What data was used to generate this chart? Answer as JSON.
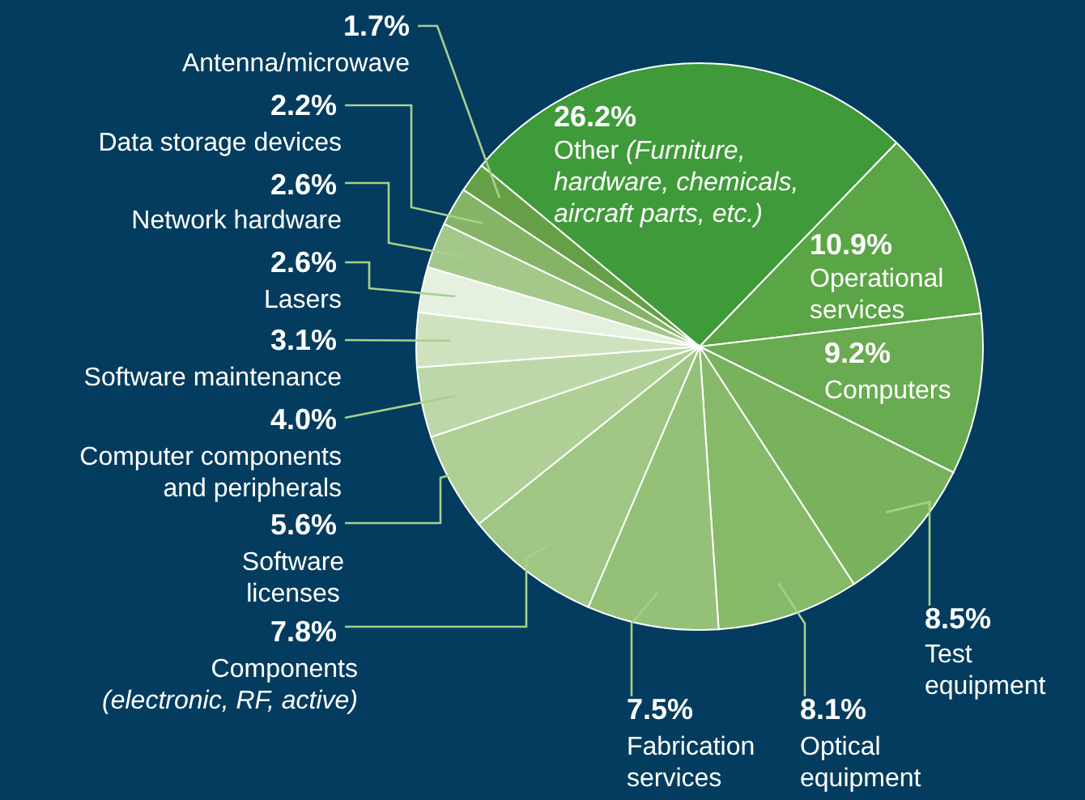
{
  "chart_data": {
    "type": "pie",
    "categories": [
      "Other (Furniture, hardware, chemicals, aircraft parts, etc.)",
      "Operational services",
      "Computers",
      "Test equipment",
      "Optical equipment",
      "Fabrication services",
      "Components (electronic, RF, active)",
      "Software licenses",
      "Computer components and peripherals",
      "Software maintenance",
      "Lasers",
      "Network hardware",
      "Data storage devices",
      "Antenna/microwave"
    ],
    "values": [
      26.2,
      10.9,
      9.2,
      8.5,
      8.1,
      7.5,
      7.8,
      5.6,
      4.0,
      3.1,
      2.6,
      2.6,
      2.2,
      1.7
    ],
    "value_labels": [
      "26.2%",
      "10.9%",
      "9.2%",
      "8.5%",
      "8.1%",
      "7.5%",
      "7.8%",
      "5.6%",
      "4.0%",
      "3.1%",
      "2.6%",
      "2.6%",
      "2.2%",
      "1.7%"
    ],
    "colors": [
      "#3f9a3a",
      "#5aa545",
      "#69ab50",
      "#78b25c",
      "#86b968",
      "#94c177",
      "#9fc683",
      "#afcf97",
      "#bdd8a8",
      "#cfe2c0",
      "#e6f0df",
      "#a3c88a",
      "#85b466",
      "#66a046"
    ]
  }
}
